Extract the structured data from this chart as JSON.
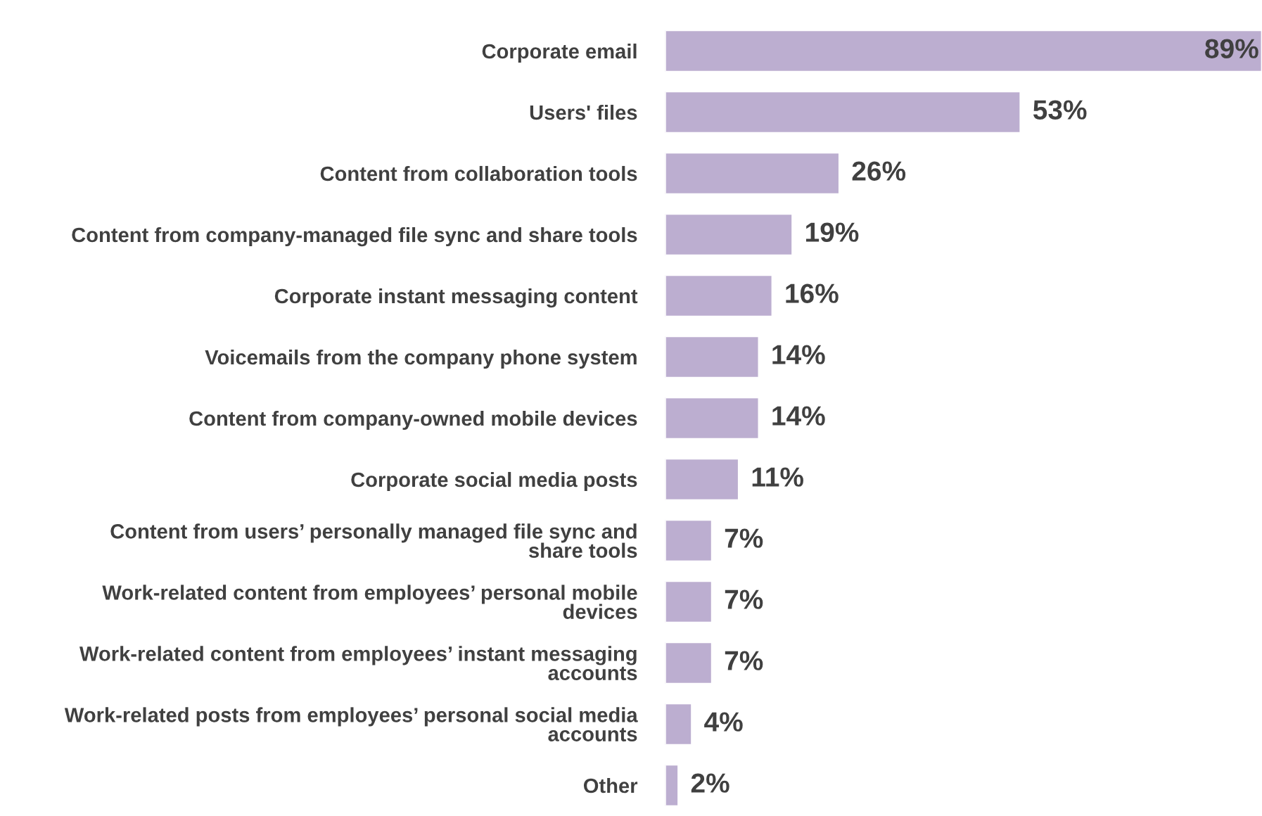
{
  "chart_data": {
    "type": "bar",
    "orientation": "horizontal",
    "data_labels": true,
    "grid": false,
    "legend": false,
    "tick_labels": "y",
    "categories": [
      "Corporate email",
      "Users' files",
      "Content from collaboration tools",
      "Content from company-managed file sync and share tools",
      "Corporate instant messaging content",
      "Voicemails from the company phone system",
      "Content from company-owned mobile devices",
      "Corporate social media posts",
      "Content from users’ personally managed file sync and\nshare tools",
      "Work-related content from employees’ personal mobile\ndevices",
      "Work-related content from employees’ instant messaging\naccounts",
      "Work-related posts from employees’ personal social media\naccounts",
      "Other"
    ],
    "values": [
      89,
      53,
      26,
      19,
      16,
      14,
      14,
      11,
      7,
      7,
      7,
      4,
      2
    ],
    "value_labels": [
      "89%",
      "53%",
      "26%",
      "19%",
      "16%",
      "14%",
      "14%",
      "11%",
      "7%",
      "7%",
      "7%",
      "4%",
      "2%"
    ],
    "color": "#bcaed0"
  }
}
